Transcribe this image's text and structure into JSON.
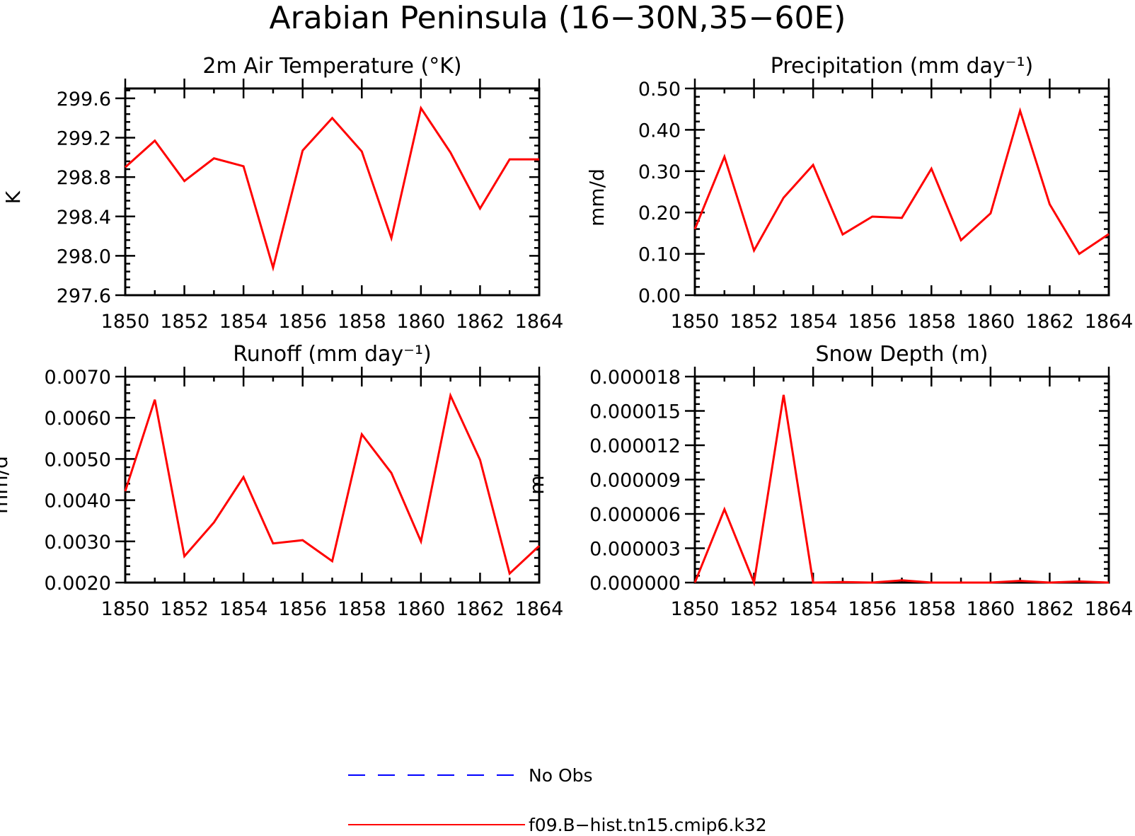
{
  "title": "Arabian Peninsula (16−30N,35−60E)",
  "colors": {
    "model": "#ff0000",
    "obs": "#0000ff"
  },
  "legend": [
    {
      "label": "No Obs",
      "color": "#0000ff",
      "style": "dashed"
    },
    {
      "label": "f09.B−hist.tn15.cmip6.k32",
      "color": "#ff0000",
      "style": "solid"
    }
  ],
  "chart_data": [
    {
      "type": "line",
      "title": "2m Air Temperature (°K)",
      "ylabel": "K",
      "xlim": [
        1850,
        1864
      ],
      "ylim": [
        297.6,
        299.7
      ],
      "xticks": [
        "1850",
        "1852",
        "1854",
        "1856",
        "1858",
        "1860",
        "1862",
        "1864"
      ],
      "yticks": [
        "297.6",
        "298.0",
        "298.4",
        "298.8",
        "299.2",
        "299.6"
      ],
      "x": [
        1850,
        1851,
        1852,
        1853,
        1854,
        1855,
        1856,
        1857,
        1858,
        1859,
        1860,
        1861,
        1862,
        1863,
        1864
      ],
      "series": [
        {
          "name": "f09.B−hist.tn15.cmip6.k32",
          "values": [
            298.9,
            299.17,
            298.76,
            298.99,
            298.91,
            297.88,
            299.07,
            299.4,
            299.06,
            298.18,
            299.5,
            299.05,
            298.48,
            298.98,
            298.98
          ]
        }
      ]
    },
    {
      "type": "line",
      "title": "Precipitation (mm day⁻¹)",
      "ylabel": "mm/d",
      "xlim": [
        1850,
        1864
      ],
      "ylim": [
        0.0,
        0.5
      ],
      "xticks": [
        "1850",
        "1852",
        "1854",
        "1856",
        "1858",
        "1860",
        "1862",
        "1864"
      ],
      "yticks": [
        "0.00",
        "0.10",
        "0.20",
        "0.30",
        "0.40",
        "0.50"
      ],
      "x": [
        1850,
        1851,
        1852,
        1853,
        1854,
        1855,
        1856,
        1857,
        1858,
        1859,
        1860,
        1861,
        1862,
        1863,
        1864
      ],
      "series": [
        {
          "name": "f09.B−hist.tn15.cmip6.k32",
          "values": [
            0.16,
            0.335,
            0.108,
            0.236,
            0.315,
            0.147,
            0.19,
            0.187,
            0.306,
            0.133,
            0.198,
            0.446,
            0.22,
            0.1,
            0.148
          ]
        }
      ]
    },
    {
      "type": "line",
      "title": "Runoff (mm day⁻¹)",
      "ylabel": "mm/d",
      "xlim": [
        1850,
        1864
      ],
      "ylim": [
        0.002,
        0.007
      ],
      "xticks": [
        "1850",
        "1852",
        "1854",
        "1856",
        "1858",
        "1860",
        "1862",
        "1864"
      ],
      "yticks": [
        "0.0020",
        "0.0030",
        "0.0040",
        "0.0050",
        "0.0060",
        "0.0070"
      ],
      "x": [
        1850,
        1851,
        1852,
        1853,
        1854,
        1855,
        1856,
        1857,
        1858,
        1859,
        1860,
        1861,
        1862,
        1863,
        1864
      ],
      "series": [
        {
          "name": "f09.B−hist.tn15.cmip6.k32",
          "values": [
            0.00422,
            0.00644,
            0.00264,
            0.00346,
            0.00456,
            0.00295,
            0.00303,
            0.00252,
            0.0056,
            0.00466,
            0.003,
            0.00654,
            0.00498,
            0.00222,
            0.00289
          ]
        }
      ]
    },
    {
      "type": "line",
      "title": "Snow Depth (m)",
      "ylabel": "m",
      "xlim": [
        1850,
        1864
      ],
      "ylim": [
        0.0,
        1.8e-05
      ],
      "xticks": [
        "1850",
        "1852",
        "1854",
        "1856",
        "1858",
        "1860",
        "1862",
        "1864"
      ],
      "yticks": [
        "0.000000",
        "0.000003",
        "0.000006",
        "0.000009",
        "0.000012",
        "0.000015",
        "0.000018"
      ],
      "x": [
        1850,
        1851,
        1852,
        1853,
        1854,
        1855,
        1856,
        1857,
        1858,
        1859,
        1860,
        1861,
        1862,
        1863,
        1864
      ],
      "series": [
        {
          "name": "f09.B−hist.tn15.cmip6.k32",
          "values": [
            0.0,
            6.4e-06,
            0.0,
            1.64e-05,
            0.0,
            5e-08,
            0.0,
            2e-07,
            0.0,
            0.0,
            0.0,
            1.5e-07,
            0.0,
            1e-07,
            0.0
          ]
        }
      ]
    }
  ]
}
